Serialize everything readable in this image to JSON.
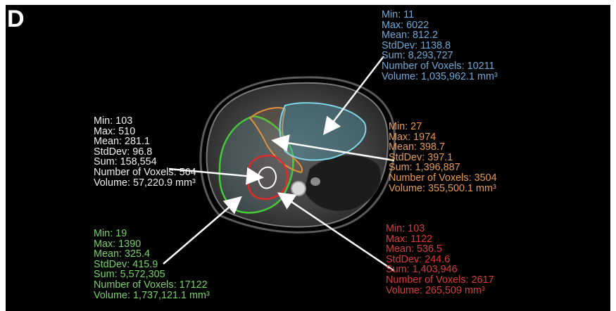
{
  "panel_label": "D",
  "colors": {
    "blue": "#6fa9d8",
    "orange": "#e79a53",
    "white": "#f0f0f0",
    "green": "#79d26a",
    "red": "#dc3a3a"
  },
  "blue_stats": {
    "min": "Min: 11",
    "max": "Max: 6022",
    "mean": "Mean: 812.2",
    "stddev": "StdDev: 1138.8",
    "sum": "Sum: 8,293,727",
    "voxels": "Number of Voxels: 10211",
    "volume": "Volume: 1,035,962.1 mm³"
  },
  "orange_stats": {
    "min": "Min: 27",
    "max": "Max: 1974",
    "mean": "Mean: 398.7",
    "stddev": "StdDev: 397.1",
    "sum": "Sum: 1,396,887",
    "voxels": "Number of Voxels: 3504",
    "volume": "Volume: 355,500.1 mm³"
  },
  "white_stats": {
    "min": "Min: 103",
    "max": "Max: 510",
    "mean": "Mean: 281.1",
    "stddev": "StdDev: 96.8",
    "sum": "Sum: 158,554",
    "voxels": "Number of Voxels: 564",
    "volume": "Volume: 57,220.9 mm³"
  },
  "green_stats": {
    "min": "Min: 19",
    "max": "Max: 1390",
    "mean": "Mean: 325.4",
    "stddev": "StdDev: 415.9",
    "sum": "Sum: 5,572,305",
    "voxels": "Number of Voxels: 17122",
    "volume": "Volume: 1,737,121.1 mm³"
  },
  "red_stats": {
    "min": "Min: 103",
    "max": "Max: 1122",
    "mean": "Mean: 536.5",
    "stddev": "StdDev: 244.6",
    "sum": "Sum: 1,403,946",
    "voxels": "Number of Voxels: 2617",
    "volume": "Volume: 265,509 mm³"
  }
}
